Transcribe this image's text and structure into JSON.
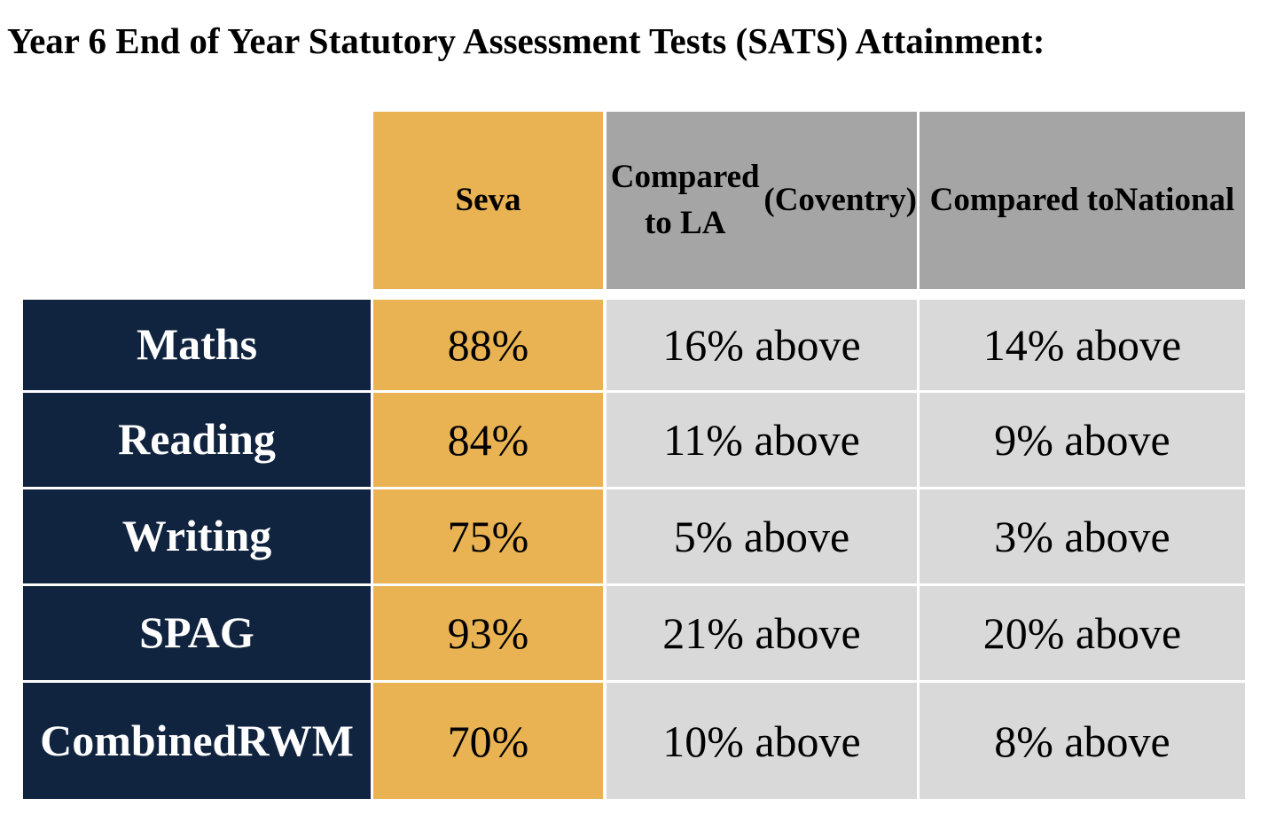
{
  "title": "Year 6 End of Year Statutory Assessment Tests (SATS) Attainment:",
  "colors": {
    "row_label_bg": "#11243f",
    "seva_bg": "#e9b353",
    "header_grey": "#a5a5a5",
    "cell_grey": "#d9d9d9"
  },
  "chart_data": {
    "type": "table",
    "title": "Year 6 End of Year Statutory Assessment Tests (SATS) Attainment:",
    "columns": [
      "",
      "Seva",
      [
        "Compared to LA",
        "(Coventry)"
      ],
      [
        "Compared to",
        "National"
      ]
    ],
    "rows": [
      {
        "label": [
          "Maths"
        ],
        "seva": "88%",
        "la": "16% above",
        "national": "14% above"
      },
      {
        "label": [
          "Reading"
        ],
        "seva": "84%",
        "la": "11% above",
        "national": "9% above"
      },
      {
        "label": [
          "Writing"
        ],
        "seva": "75%",
        "la": "5% above",
        "national": "3% above"
      },
      {
        "label": [
          "SPAG"
        ],
        "seva": "93%",
        "la": "21% above",
        "national": "20% above"
      },
      {
        "label": [
          "Combined",
          "RWM"
        ],
        "seva": "70%",
        "la": "10% above",
        "national": "8% above"
      }
    ]
  }
}
